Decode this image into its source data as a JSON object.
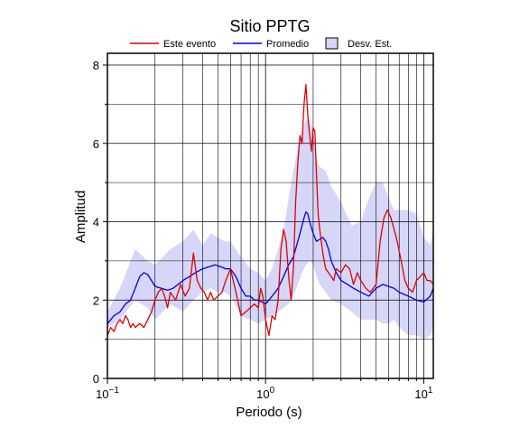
{
  "chart_data": {
    "type": "line",
    "title": "Sitio PPTG",
    "xlabel": "Periodo (s)",
    "ylabel": "Amplitud",
    "xscale": "log",
    "xlim": [
      0.1,
      11.5
    ],
    "ylim": [
      0,
      8.3
    ],
    "xticks": [
      {
        "value": 0.1,
        "base": "10",
        "exp": "−1"
      },
      {
        "value": 1,
        "base": "10",
        "exp": "0"
      },
      {
        "value": 10,
        "base": "10",
        "exp": "1"
      }
    ],
    "yticks": [
      0,
      2,
      4,
      6,
      8
    ],
    "grid": true,
    "legend_position": "top-center",
    "legend": [
      {
        "label": "Este evento",
        "kind": "line",
        "color": "#e00000"
      },
      {
        "label": "Promedio",
        "kind": "line",
        "color": "#0000e0"
      },
      {
        "label": "Desv. Est.",
        "kind": "patch",
        "color": "#d6d6f8"
      }
    ],
    "series": [
      {
        "name": "Desv. Est.",
        "kind": "band",
        "color": "#d6d6f8",
        "x": [
          0.1,
          0.12,
          0.15,
          0.18,
          0.2,
          0.25,
          0.3,
          0.35,
          0.4,
          0.45,
          0.5,
          0.55,
          0.6,
          0.7,
          0.8,
          0.9,
          1.0,
          1.1,
          1.2,
          1.3,
          1.4,
          1.5,
          1.6,
          1.7,
          1.8,
          1.9,
          2.0,
          2.1,
          2.2,
          2.4,
          2.6,
          3.0,
          3.5,
          4.0,
          4.5,
          5.0,
          5.5,
          6.0,
          6.5,
          7.0,
          8.0,
          9.0,
          10.0,
          11.0,
          11.5
        ],
        "lower": [
          1.3,
          1.5,
          2.0,
          1.8,
          1.5,
          1.9,
          1.7,
          2.0,
          2.2,
          2.3,
          2.2,
          2.2,
          2.1,
          1.6,
          1.5,
          1.4,
          1.5,
          1.6,
          1.7,
          1.8,
          1.9,
          2.1,
          2.4,
          2.7,
          2.9,
          3.0,
          2.9,
          2.6,
          2.4,
          2.2,
          2.0,
          1.9,
          1.7,
          1.5,
          1.5,
          1.5,
          1.4,
          1.4,
          1.5,
          1.3,
          1.1,
          1.1,
          1.0,
          1.1,
          1.3
        ],
        "upper": [
          1.7,
          2.3,
          3.3,
          3.0,
          2.9,
          3.3,
          3.5,
          3.8,
          3.4,
          3.7,
          3.6,
          3.5,
          3.5,
          3.1,
          2.8,
          2.7,
          2.5,
          2.8,
          3.3,
          3.8,
          4.6,
          5.3,
          5.9,
          6.3,
          6.6,
          6.6,
          6.3,
          5.6,
          5.4,
          5.3,
          4.9,
          4.5,
          3.9,
          4.0,
          4.6,
          5.0,
          5.0,
          4.6,
          4.3,
          4.3,
          4.3,
          4.2,
          3.6,
          3.4,
          3.8
        ]
      },
      {
        "name": "Promedio",
        "kind": "line",
        "color": "#0000e0",
        "x": [
          0.1,
          0.11,
          0.12,
          0.13,
          0.14,
          0.15,
          0.16,
          0.17,
          0.18,
          0.19,
          0.2,
          0.22,
          0.24,
          0.26,
          0.28,
          0.3,
          0.33,
          0.36,
          0.4,
          0.44,
          0.48,
          0.52,
          0.56,
          0.6,
          0.65,
          0.7,
          0.75,
          0.8,
          0.85,
          0.9,
          0.95,
          1.0,
          1.05,
          1.1,
          1.15,
          1.2,
          1.3,
          1.4,
          1.5,
          1.6,
          1.7,
          1.75,
          1.8,
          1.85,
          1.9,
          2.0,
          2.1,
          2.2,
          2.3,
          2.4,
          2.5,
          2.6,
          2.8,
          3.0,
          3.3,
          3.6,
          4.0,
          4.5,
          5.0,
          5.5,
          6.0,
          6.5,
          7.0,
          8.0,
          9.0,
          10.0,
          11.0,
          11.5
        ],
        "y": [
          1.4,
          1.6,
          1.7,
          1.9,
          2.0,
          2.3,
          2.6,
          2.7,
          2.65,
          2.5,
          2.35,
          2.3,
          2.25,
          2.3,
          2.4,
          2.5,
          2.6,
          2.7,
          2.8,
          2.85,
          2.9,
          2.85,
          2.8,
          2.8,
          2.6,
          2.3,
          2.1,
          2.1,
          2.0,
          2.0,
          1.95,
          1.9,
          2.0,
          2.1,
          2.2,
          2.3,
          2.6,
          2.9,
          3.1,
          3.5,
          3.9,
          4.1,
          4.25,
          4.2,
          4.0,
          3.7,
          3.5,
          3.55,
          3.6,
          3.5,
          3.3,
          3.0,
          2.7,
          2.5,
          2.4,
          2.3,
          2.2,
          2.1,
          2.3,
          2.4,
          2.35,
          2.3,
          2.2,
          2.1,
          2.0,
          1.95,
          2.1,
          2.3
        ]
      },
      {
        "name": "Este evento",
        "kind": "line",
        "color": "#e00000",
        "x": [
          0.1,
          0.105,
          0.11,
          0.115,
          0.12,
          0.125,
          0.13,
          0.135,
          0.14,
          0.145,
          0.15,
          0.16,
          0.17,
          0.18,
          0.19,
          0.2,
          0.21,
          0.22,
          0.23,
          0.24,
          0.25,
          0.27,
          0.29,
          0.31,
          0.33,
          0.35,
          0.37,
          0.39,
          0.41,
          0.43,
          0.45,
          0.47,
          0.5,
          0.53,
          0.56,
          0.6,
          0.65,
          0.7,
          0.75,
          0.8,
          0.85,
          0.9,
          0.93,
          0.96,
          1.0,
          1.05,
          1.1,
          1.15,
          1.2,
          1.25,
          1.3,
          1.35,
          1.4,
          1.45,
          1.5,
          1.55,
          1.6,
          1.65,
          1.7,
          1.75,
          1.8,
          1.85,
          1.9,
          1.95,
          2.0,
          2.05,
          2.1,
          2.15,
          2.2,
          2.3,
          2.4,
          2.5,
          2.6,
          2.7,
          2.8,
          3.0,
          3.2,
          3.4,
          3.6,
          3.8,
          4.0,
          4.3,
          4.6,
          5.0,
          5.3,
          5.6,
          5.9,
          6.2,
          6.5,
          6.8,
          7.2,
          7.6,
          8.0,
          8.5,
          9.0,
          9.5,
          10.0,
          10.5,
          11.0,
          11.5
        ],
        "y": [
          1.1,
          1.3,
          1.2,
          1.4,
          1.5,
          1.4,
          1.6,
          1.5,
          1.3,
          1.4,
          1.3,
          1.4,
          1.3,
          1.5,
          1.7,
          2.0,
          2.2,
          2.3,
          2.1,
          1.8,
          2.2,
          2.0,
          2.4,
          2.1,
          2.3,
          3.2,
          2.5,
          2.3,
          2.2,
          2.0,
          2.2,
          2.0,
          2.1,
          2.2,
          2.5,
          2.8,
          2.2,
          1.6,
          1.7,
          1.8,
          1.9,
          1.8,
          2.3,
          2.1,
          1.5,
          1.1,
          1.6,
          1.5,
          2.0,
          3.3,
          3.8,
          3.5,
          2.6,
          2.0,
          2.8,
          4.5,
          5.5,
          6.2,
          6.0,
          7.0,
          7.5,
          6.7,
          6.2,
          5.8,
          6.4,
          6.3,
          5.2,
          4.2,
          3.8,
          3.2,
          2.8,
          2.7,
          2.6,
          2.5,
          2.8,
          2.7,
          2.9,
          2.8,
          2.4,
          2.7,
          2.5,
          2.3,
          2.2,
          2.4,
          3.5,
          4.1,
          4.3,
          4.1,
          3.8,
          3.5,
          3.0,
          2.5,
          2.3,
          2.2,
          2.5,
          2.6,
          2.7,
          2.5,
          2.5,
          2.4
        ]
      }
    ]
  }
}
